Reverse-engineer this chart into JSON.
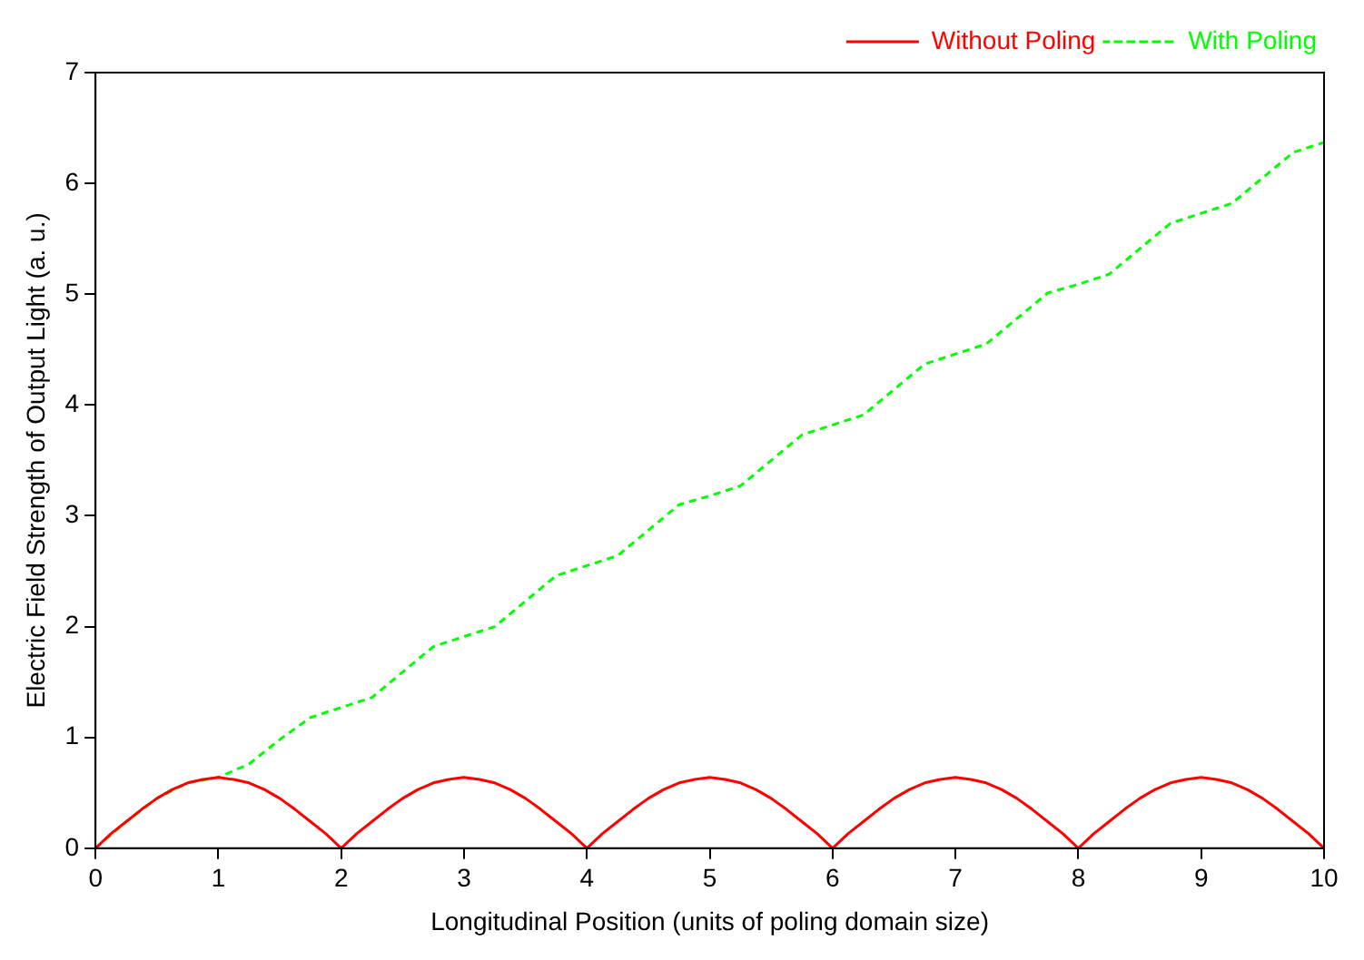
{
  "chart_data": {
    "type": "line",
    "xlabel": "Longitudinal Position (units of poling domain size)",
    "ylabel": "Electric Field Strength of Output Light (a. u.)",
    "xlim": [
      0,
      10
    ],
    "xticks": [
      0,
      1,
      2,
      3,
      4,
      5,
      6,
      7,
      8,
      9,
      10
    ],
    "ylim": [
      0,
      7
    ],
    "yticks": [
      0,
      1,
      2,
      3,
      4,
      5,
      6,
      7
    ],
    "grid": false,
    "legend": "top right",
    "marker": "none",
    "series": [
      {
        "name": "Without Poling",
        "color": "#ff0000",
        "line_style": "solid",
        "x": [
          0,
          0.125,
          0.25,
          0.375,
          0.5,
          0.625,
          0.75,
          0.875,
          1,
          1.125,
          1.25,
          1.375,
          1.5,
          1.625,
          1.75,
          1.875,
          2,
          2.125,
          2.25,
          2.375,
          2.5,
          2.625,
          2.75,
          2.875,
          3,
          3.125,
          3.25,
          3.375,
          3.5,
          3.625,
          3.75,
          3.875,
          4,
          4.125,
          4.25,
          4.375,
          4.5,
          4.625,
          4.75,
          4.875,
          5,
          5.125,
          5.25,
          5.375,
          5.5,
          5.625,
          5.75,
          5.875,
          6,
          6.125,
          6.25,
          6.375,
          6.5,
          6.625,
          6.75,
          6.875,
          7,
          7.125,
          7.25,
          7.375,
          7.5,
          7.625,
          7.75,
          7.875,
          8,
          8.125,
          8.25,
          8.375,
          8.5,
          8.625,
          8.75,
          8.875,
          9,
          9.125,
          9.25,
          9.375,
          9.5,
          9.625,
          9.75,
          9.875,
          10
        ],
        "values": [
          0,
          0.13,
          0.24,
          0.35,
          0.45,
          0.53,
          0.59,
          0.62,
          0.64,
          0.62,
          0.59,
          0.53,
          0.45,
          0.35,
          0.24,
          0.13,
          0,
          0.13,
          0.24,
          0.35,
          0.45,
          0.53,
          0.59,
          0.62,
          0.64,
          0.62,
          0.59,
          0.53,
          0.45,
          0.35,
          0.24,
          0.13,
          0,
          0.13,
          0.24,
          0.35,
          0.45,
          0.53,
          0.59,
          0.62,
          0.64,
          0.62,
          0.59,
          0.53,
          0.45,
          0.35,
          0.24,
          0.13,
          0,
          0.13,
          0.24,
          0.35,
          0.45,
          0.53,
          0.59,
          0.62,
          0.64,
          0.62,
          0.59,
          0.53,
          0.45,
          0.35,
          0.24,
          0.13,
          0,
          0.13,
          0.24,
          0.35,
          0.45,
          0.53,
          0.59,
          0.62,
          0.64,
          0.62,
          0.59,
          0.53,
          0.45,
          0.35,
          0.24,
          0.13,
          0
        ]
      },
      {
        "name": "With Poling",
        "color": "#00ff00",
        "line_style": "dashed",
        "x": [
          0,
          0.25,
          0.5,
          0.75,
          1,
          1.25,
          1.5,
          1.75,
          2,
          2.25,
          2.5,
          2.75,
          3,
          3.25,
          3.5,
          3.75,
          4,
          4.25,
          4.5,
          4.75,
          5,
          5.25,
          5.5,
          5.75,
          6,
          6.25,
          6.5,
          6.75,
          7,
          7.25,
          7.5,
          7.75,
          8,
          8.25,
          8.5,
          8.75,
          9,
          9.25,
          9.5,
          9.75,
          10
        ],
        "values": [
          0,
          0.24,
          0.45,
          0.59,
          0.64,
          0.76,
          0.98,
          1.18,
          1.27,
          1.36,
          1.59,
          1.82,
          1.91,
          2.0,
          2.23,
          2.46,
          2.55,
          2.64,
          2.87,
          3.1,
          3.18,
          3.27,
          3.5,
          3.73,
          3.82,
          3.91,
          4.14,
          4.37,
          4.46,
          4.55,
          4.78,
          5.01,
          5.09,
          5.18,
          5.41,
          5.64,
          5.73,
          5.82,
          6.05,
          6.28,
          6.37
        ]
      }
    ]
  }
}
